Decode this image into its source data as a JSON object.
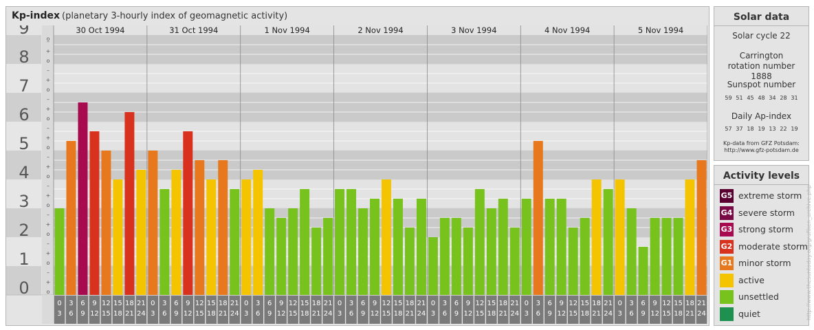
{
  "header": {
    "title": "Kp-index",
    "subtitle": "(planetary 3-hourly index of geomagnetic activity)"
  },
  "chart_data": {
    "type": "bar",
    "ylim": [
      0,
      9
    ],
    "y_ticks": [
      "0",
      "1",
      "2",
      "3",
      "4",
      "5",
      "6",
      "7",
      "8",
      "9"
    ],
    "minor_ticks": [
      "+",
      "o",
      "–"
    ],
    "days": [
      "30 Oct 1994",
      "31 Oct 1994",
      "1 Nov 1994",
      "2 Nov 1994",
      "3 Nov 1994",
      "4 Nov 1994",
      "5 Nov 1994"
    ],
    "hour_top": [
      "0",
      "3",
      "6",
      "9",
      "12",
      "15",
      "18",
      "21"
    ],
    "hour_bottom": [
      "3",
      "6",
      "9",
      "12",
      "15",
      "18",
      "21",
      "24"
    ],
    "values": [
      3.0,
      5.333,
      6.667,
      5.667,
      5.0,
      4.0,
      6.333,
      4.333,
      5.0,
      3.667,
      4.333,
      5.667,
      4.667,
      4.0,
      4.667,
      3.667,
      4.0,
      4.333,
      3.0,
      2.667,
      3.0,
      3.667,
      2.333,
      2.667,
      3.667,
      3.667,
      3.0,
      3.333,
      4.0,
      3.333,
      2.333,
      3.333,
      2.0,
      2.667,
      2.667,
      2.333,
      3.667,
      3.0,
      3.333,
      2.333,
      3.333,
      5.333,
      3.333,
      3.333,
      2.333,
      2.667,
      4.0,
      3.667,
      4.0,
      3.0,
      1.667,
      2.667,
      2.667,
      2.667,
      4.0,
      4.667
    ],
    "colors": {
      "quiet": "#1e9150",
      "unsettled": "#78c21e",
      "active": "#f5c400",
      "minor_storm": "#e8781e",
      "moderate_storm": "#d8321e",
      "strong_storm": "#a80a50",
      "severe_storm": "#7a0a46",
      "extreme_storm": "#5a0030"
    }
  },
  "solar": {
    "title": "Solar data",
    "cycle": "Solar cycle 22",
    "carrington": "Carrington rotation number 1888",
    "sunspot_title": "Sunspot number",
    "sunspots": [
      "59",
      "51",
      "45",
      "48",
      "34",
      "28",
      "31"
    ],
    "ap_title": "Daily Ap-index",
    "ap": [
      "57",
      "37",
      "18",
      "19",
      "13",
      "22",
      "19"
    ],
    "source_line1": "Kp-data from GFZ Potsdam:",
    "source_line2": "http://www.gfz-potsdam.de"
  },
  "activity": {
    "title": "Activity levels",
    "items": [
      {
        "badge": "G5",
        "label": "extreme storm",
        "color": "#5a0030"
      },
      {
        "badge": "G4",
        "label": "severe storm",
        "color": "#7a0a46"
      },
      {
        "badge": "G3",
        "label": "strong storm",
        "color": "#a80a50"
      },
      {
        "badge": "G2",
        "label": "moderate storm",
        "color": "#d8321e"
      },
      {
        "badge": "G1",
        "label": "minor storm",
        "color": "#e8781e"
      },
      {
        "badge": "",
        "label": "active",
        "color": "#f5c400"
      },
      {
        "badge": "",
        "label": "unsettled",
        "color": "#78c21e"
      },
      {
        "badge": "",
        "label": "quiet",
        "color": "#1e9150"
      }
    ]
  },
  "credit": "http://www.thesuntoday.org/grafiken_archive.php"
}
